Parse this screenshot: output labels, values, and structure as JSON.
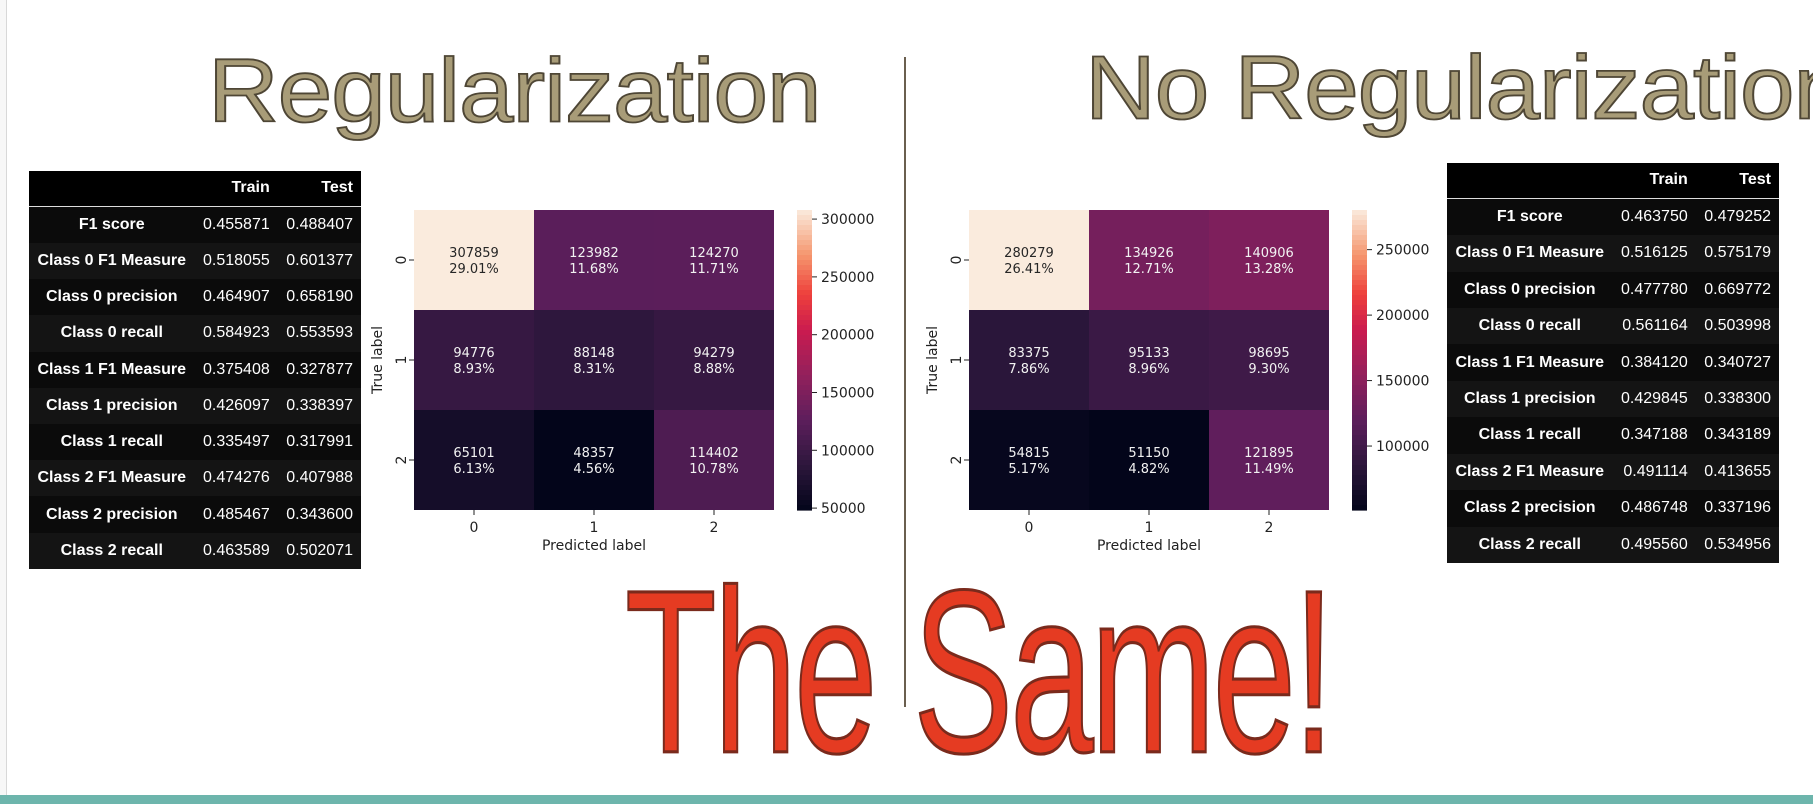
{
  "titles": {
    "left": "Regularization",
    "right": "No Regularization",
    "center": "The Same!"
  },
  "colors": {
    "title_fill": "#a89c78",
    "same_fill": "#e53b22",
    "accent_bar": "#6db5ac"
  },
  "tables": {
    "left": {
      "header": [
        "",
        "Train",
        "Test"
      ],
      "rows": [
        [
          "F1 score",
          "0.455871",
          "0.488407"
        ],
        [
          "Class 0 F1 Measure",
          "0.518055",
          "0.601377"
        ],
        [
          "Class 0 precision",
          "0.464907",
          "0.658190"
        ],
        [
          "Class 0 recall",
          "0.584923",
          "0.553593"
        ],
        [
          "Class 1 F1 Measure",
          "0.375408",
          "0.327877"
        ],
        [
          "Class 1 precision",
          "0.426097",
          "0.338397"
        ],
        [
          "Class 1 recall",
          "0.335497",
          "0.317991"
        ],
        [
          "Class 2 F1 Measure",
          "0.474276",
          "0.407988"
        ],
        [
          "Class 2 precision",
          "0.485467",
          "0.343600"
        ],
        [
          "Class 2 recall",
          "0.463589",
          "0.502071"
        ]
      ]
    },
    "right": {
      "header": [
        "",
        "Train",
        "Test"
      ],
      "rows": [
        [
          "F1 score",
          "0.463750",
          "0.479252"
        ],
        [
          "Class 0 F1 Measure",
          "0.516125",
          "0.575179"
        ],
        [
          "Class 0 precision",
          "0.477780",
          "0.669772"
        ],
        [
          "Class 0 recall",
          "0.561164",
          "0.503998"
        ],
        [
          "Class 1 F1 Measure",
          "0.384120",
          "0.340727"
        ],
        [
          "Class 1 precision",
          "0.429845",
          "0.338300"
        ],
        [
          "Class 1 recall",
          "0.347188",
          "0.343189"
        ],
        [
          "Class 2 F1 Measure",
          "0.491114",
          "0.413655"
        ],
        [
          "Class 2 precision",
          "0.486748",
          "0.337196"
        ],
        [
          "Class 2 recall",
          "0.495560",
          "0.534956"
        ]
      ]
    }
  },
  "chart_data": [
    {
      "type": "heatmap",
      "xlabel": "Predicted label",
      "ylabel": "True label",
      "x_categories": [
        "0",
        "1",
        "2"
      ],
      "y_categories": [
        "0",
        "1",
        "2"
      ],
      "values": [
        [
          307859,
          123982,
          124270
        ],
        [
          94776,
          88148,
          94279
        ],
        [
          65101,
          48357,
          114402
        ]
      ],
      "percentages": [
        [
          "29.01%",
          "11.68%",
          "11.71%"
        ],
        [
          "8.93%",
          "8.31%",
          "8.88%"
        ],
        [
          "6.13%",
          "4.56%",
          "10.78%"
        ]
      ],
      "colorbar_ticks": [
        "50000",
        "100000",
        "150000",
        "200000",
        "250000",
        "300000"
      ],
      "colorbar_tick_values": [
        50000,
        100000,
        150000,
        200000,
        250000,
        300000
      ],
      "colorbar_range": [
        48357,
        307859
      ],
      "colormap": "rocket"
    },
    {
      "type": "heatmap",
      "xlabel": "Predicted label",
      "ylabel": "True label",
      "x_categories": [
        "0",
        "1",
        "2"
      ],
      "y_categories": [
        "0",
        "1",
        "2"
      ],
      "values": [
        [
          280279,
          134926,
          140906
        ],
        [
          83375,
          95133,
          98695
        ],
        [
          54815,
          51150,
          121895
        ]
      ],
      "percentages": [
        [
          "26.41%",
          "12.71%",
          "13.28%"
        ],
        [
          "7.86%",
          "8.96%",
          "9.30%"
        ],
        [
          "5.17%",
          "4.82%",
          "11.49%"
        ]
      ],
      "colorbar_ticks": [
        "100000",
        "150000",
        "200000",
        "250000"
      ],
      "colorbar_tick_values": [
        100000,
        150000,
        200000,
        250000
      ],
      "colorbar_range": [
        51150,
        280279
      ],
      "colormap": "rocket"
    }
  ]
}
